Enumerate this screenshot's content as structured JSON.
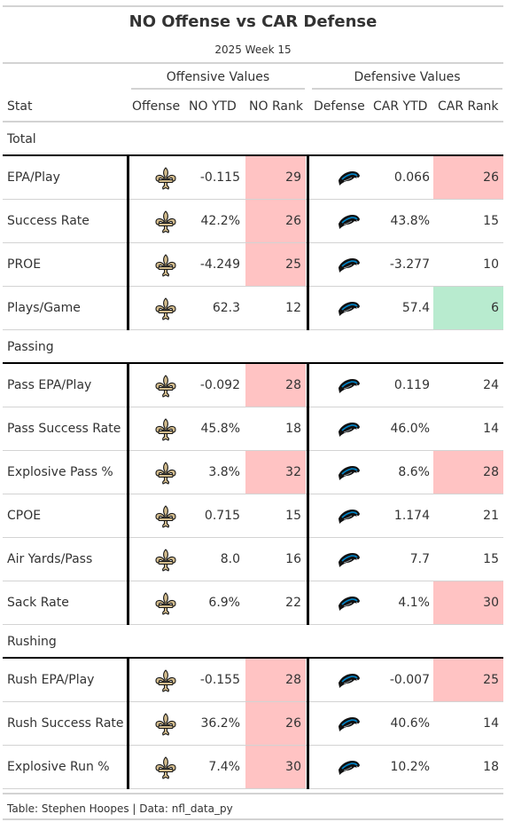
{
  "title": "NO Offense vs CAR Defense",
  "subtitle": "2025 Week 15",
  "spanners": {
    "offense": "Offensive Values",
    "defense": "Defensive Values"
  },
  "columns": {
    "stat": "Stat",
    "offense": "Offense",
    "no_ytd": "NO YTD",
    "no_rank": "NO Rank",
    "defense": "Defense",
    "car_ytd": "CAR YTD",
    "car_rank": "CAR Rank"
  },
  "colors": {
    "bad": "#ffc3c3",
    "good": "#b8ebcf",
    "saints_gold": "#d3bc8d",
    "panthers_blue": "#0085ca"
  },
  "icons": {
    "offense": "saints-fleur-de-lis-icon",
    "defense": "panthers-logo-icon"
  },
  "groups": [
    {
      "label": "Total",
      "rows": [
        {
          "stat": "EPA/Play",
          "no_ytd": "-0.115",
          "no_rank": "29",
          "no_hl": "bad",
          "car_ytd": "0.066",
          "car_rank": "26",
          "car_hl": "bad"
        },
        {
          "stat": "Success Rate",
          "no_ytd": "42.2%",
          "no_rank": "26",
          "no_hl": "bad",
          "car_ytd": "43.8%",
          "car_rank": "15",
          "car_hl": ""
        },
        {
          "stat": "PROE",
          "no_ytd": "-4.249",
          "no_rank": "25",
          "no_hl": "bad",
          "car_ytd": "-3.277",
          "car_rank": "10",
          "car_hl": ""
        },
        {
          "stat": "Plays/Game",
          "no_ytd": "62.3",
          "no_rank": "12",
          "no_hl": "",
          "car_ytd": "57.4",
          "car_rank": "6",
          "car_hl": "good"
        }
      ]
    },
    {
      "label": "Passing",
      "rows": [
        {
          "stat": "Pass EPA/Play",
          "no_ytd": "-0.092",
          "no_rank": "28",
          "no_hl": "bad",
          "car_ytd": "0.119",
          "car_rank": "24",
          "car_hl": ""
        },
        {
          "stat": "Pass Success Rate",
          "no_ytd": "45.8%",
          "no_rank": "18",
          "no_hl": "",
          "car_ytd": "46.0%",
          "car_rank": "14",
          "car_hl": ""
        },
        {
          "stat": "Explosive Pass %",
          "no_ytd": "3.8%",
          "no_rank": "32",
          "no_hl": "bad",
          "car_ytd": "8.6%",
          "car_rank": "28",
          "car_hl": "bad"
        },
        {
          "stat": "CPOE",
          "no_ytd": "0.715",
          "no_rank": "15",
          "no_hl": "",
          "car_ytd": "1.174",
          "car_rank": "21",
          "car_hl": ""
        },
        {
          "stat": "Air Yards/Pass",
          "no_ytd": "8.0",
          "no_rank": "16",
          "no_hl": "",
          "car_ytd": "7.7",
          "car_rank": "15",
          "car_hl": ""
        },
        {
          "stat": "Sack Rate",
          "no_ytd": "6.9%",
          "no_rank": "22",
          "no_hl": "",
          "car_ytd": "4.1%",
          "car_rank": "30",
          "car_hl": "bad"
        }
      ]
    },
    {
      "label": "Rushing",
      "rows": [
        {
          "stat": "Rush EPA/Play",
          "no_ytd": "-0.155",
          "no_rank": "28",
          "no_hl": "bad",
          "car_ytd": "-0.007",
          "car_rank": "25",
          "car_hl": "bad"
        },
        {
          "stat": "Rush Success Rate",
          "no_ytd": "36.2%",
          "no_rank": "26",
          "no_hl": "bad",
          "car_ytd": "40.6%",
          "car_rank": "14",
          "car_hl": ""
        },
        {
          "stat": "Explosive Run %",
          "no_ytd": "7.4%",
          "no_rank": "30",
          "no_hl": "bad",
          "car_ytd": "10.2%",
          "car_rank": "18",
          "car_hl": ""
        }
      ]
    }
  ],
  "footer": "Table: Stephen Hoopes | Data: nfl_data_py"
}
